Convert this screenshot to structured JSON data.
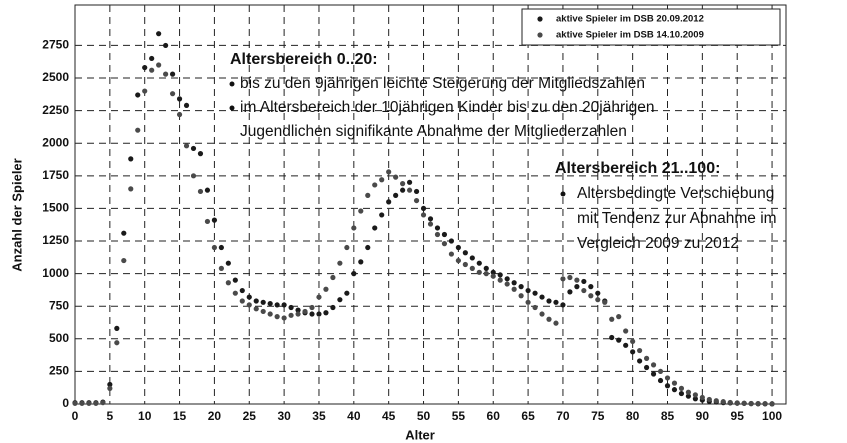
{
  "chart_data": {
    "type": "scatter",
    "xlabel": "Alter",
    "ylabel": "Anzahl der Spieler",
    "xlim": [
      0,
      102
    ],
    "ylim": [
      0,
      3060
    ],
    "xticks": [
      0,
      5,
      10,
      15,
      20,
      25,
      30,
      35,
      40,
      45,
      50,
      55,
      60,
      65,
      70,
      75,
      80,
      85,
      90,
      95,
      100
    ],
    "yticks": [
      0,
      250,
      500,
      750,
      1000,
      1250,
      1500,
      1750,
      2000,
      2250,
      2500,
      2750
    ],
    "grid": true,
    "legend": "upper right",
    "x": [
      0,
      1,
      2,
      3,
      4,
      5,
      6,
      7,
      8,
      9,
      10,
      11,
      12,
      13,
      14,
      15,
      16,
      17,
      18,
      19,
      20,
      21,
      22,
      23,
      24,
      25,
      26,
      27,
      28,
      29,
      30,
      31,
      32,
      33,
      34,
      35,
      36,
      37,
      38,
      39,
      40,
      41,
      42,
      43,
      44,
      45,
      46,
      47,
      48,
      49,
      50,
      51,
      52,
      53,
      54,
      55,
      56,
      57,
      58,
      59,
      60,
      61,
      62,
      63,
      64,
      65,
      66,
      67,
      68,
      69,
      70,
      71,
      72,
      73,
      74,
      75,
      76,
      77,
      78,
      79,
      80,
      81,
      82,
      83,
      84,
      85,
      86,
      87,
      88,
      89,
      90,
      91,
      92,
      93,
      94,
      95,
      96,
      97,
      98,
      99,
      100
    ],
    "series": [
      {
        "name": "aktive Spieler im DSB 20.09.2012",
        "color": "#1a1a1a",
        "values": [
          10,
          10,
          10,
          10,
          15,
          150,
          580,
          1310,
          1880,
          2370,
          2580,
          2650,
          2840,
          2750,
          2530,
          2340,
          2290,
          1960,
          1920,
          1640,
          1410,
          1200,
          1080,
          950,
          870,
          820,
          790,
          780,
          770,
          760,
          760,
          740,
          720,
          700,
          690,
          690,
          700,
          740,
          800,
          850,
          1000,
          1090,
          1200,
          1350,
          1450,
          1550,
          1600,
          1640,
          1700,
          1630,
          1500,
          1420,
          1350,
          1300,
          1250,
          1200,
          1160,
          1120,
          1080,
          1040,
          1010,
          990,
          960,
          930,
          900,
          870,
          850,
          820,
          790,
          780,
          760,
          860,
          900,
          940,
          900,
          850,
          790,
          510,
          490,
          450,
          400,
          330,
          280,
          230,
          180,
          140,
          110,
          80,
          60,
          40,
          30,
          20,
          15,
          10,
          8,
          6,
          5,
          3,
          2,
          2,
          1
        ]
      },
      {
        "name": "aktive Spieler im DSB 14.10.2009",
        "color": "#4a4a4a",
        "values": [
          5,
          5,
          5,
          5,
          10,
          120,
          470,
          1100,
          1650,
          2100,
          2400,
          2560,
          2600,
          2530,
          2380,
          2220,
          1980,
          1750,
          1630,
          1400,
          1200,
          1040,
          930,
          850,
          790,
          760,
          730,
          710,
          690,
          670,
          660,
          680,
          690,
          710,
          740,
          820,
          880,
          970,
          1080,
          1200,
          1350,
          1480,
          1600,
          1680,
          1720,
          1780,
          1740,
          1690,
          1640,
          1560,
          1450,
          1380,
          1300,
          1230,
          1150,
          1100,
          1070,
          1040,
          1010,
          1000,
          980,
          950,
          920,
          880,
          830,
          780,
          740,
          690,
          650,
          620,
          960,
          970,
          950,
          870,
          830,
          800,
          780,
          650,
          670,
          560,
          480,
          410,
          350,
          300,
          250,
          200,
          160,
          120,
          90,
          70,
          50,
          35,
          25,
          18,
          12,
          9,
          6,
          4,
          3,
          2,
          1
        ]
      }
    ],
    "annotations": [
      {
        "title": "Altersbereich 0..20:",
        "items": [
          [
            "bis zu den 9jährigen leichte Steigerung der Mitgliedszahlen"
          ],
          [
            "im Altersbereich der 10jährigen Kinder bis zu den 20jährigen",
            "Jugendlichen signifikante Abnahme der Mitgliederzahlen"
          ]
        ]
      },
      {
        "title": "Altersbereich 21..100:",
        "items": [
          [
            "Altersbedingte Verschiebung",
            "mit Tendenz zur Abnahme im",
            "Vergleich 2009 zu 2012"
          ]
        ]
      }
    ]
  }
}
